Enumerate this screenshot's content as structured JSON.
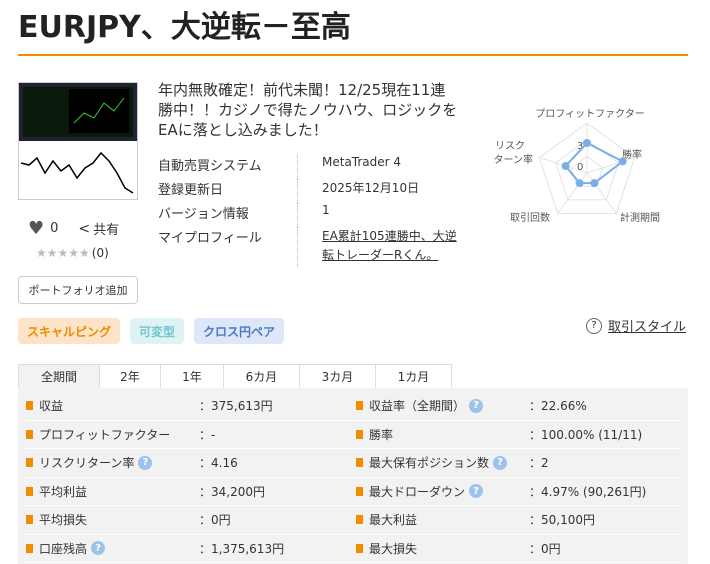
{
  "title": "EURJPY、大逆転－至高",
  "description": "年内無敗確定！前代未聞！12/25現在11連勝中！！カジノで得たノウハウ、ロジックを EAに落とし込みました！",
  "likes": {
    "count": "0",
    "share": "共有",
    "rating": "★★★★★",
    "rating_count": "(0)"
  },
  "portfolio_button": "ポートフォリオ追加",
  "info": [
    {
      "label": "自動売買システム",
      "value": "MetaTrader 4"
    },
    {
      "label": "登録更新日",
      "value": "2025年12月10日"
    },
    {
      "label": "バージョン情報",
      "value": "1"
    },
    {
      "label": "マイプロフィール",
      "value": "EA累計105連勝中、大逆転トレーダーRくん。",
      "link": true
    }
  ],
  "radar": {
    "axes": [
      "プロフィットファクター",
      "勝率",
      "計測期間",
      "取引回数",
      "リスクターン率"
    ],
    "axis_label_risk_1": "リスク",
    "axis_label_risk_2": "ターン率",
    "scale_labels": [
      "3",
      "0"
    ],
    "values_fraction": [
      0.6,
      0.75,
      0.25,
      0.25,
      0.45
    ],
    "color": "#7aaee8"
  },
  "tags": [
    {
      "label": "スキャルピング",
      "bg": "#fde3c8",
      "color": "#f08c00"
    },
    {
      "label": "可変型",
      "bg": "#dff3f5",
      "color": "#6fc6cf"
    },
    {
      "label": "クロス円ペア",
      "bg": "#dde7f7",
      "color": "#4d78c8"
    }
  ],
  "style_link": "取引スタイル",
  "tabs": [
    "全期間",
    "2年",
    "1年",
    "6カ月",
    "3カ月",
    "1カ月"
  ],
  "stats": [
    [
      {
        "label": "収益",
        "value": "：375,613円"
      },
      {
        "label": "収益率（全期間）",
        "value": "：22.66%",
        "help": true
      }
    ],
    [
      {
        "label": "プロフィットファクター",
        "value": "：-"
      },
      {
        "label": "勝率",
        "value": "：100.00% (11/11)"
      }
    ],
    [
      {
        "label": "リスクリターン率",
        "value": "：4.16",
        "help": true
      },
      {
        "label": "最大保有ポジション数",
        "value": "：2",
        "help": true
      }
    ],
    [
      {
        "label": "平均利益",
        "value": "：34,200円"
      },
      {
        "label": "最大ドローダウン",
        "value": "：4.97% (90,261円)",
        "help": true
      }
    ],
    [
      {
        "label": "平均損失",
        "value": "：0円"
      },
      {
        "label": "最大利益",
        "value": "：50,100円"
      }
    ],
    [
      {
        "label": "口座残高",
        "value": "：1,375,613円",
        "help": true
      },
      {
        "label": "最大損失",
        "value": "：0円"
      }
    ]
  ],
  "help_glyph": "?"
}
